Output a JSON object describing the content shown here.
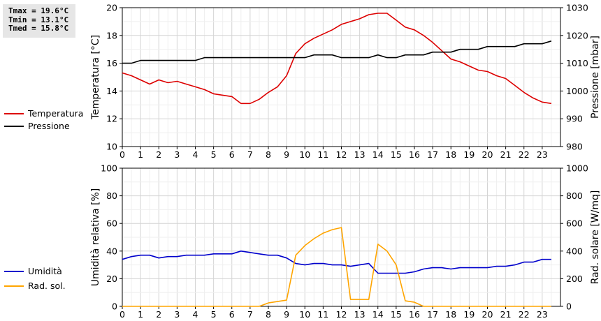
{
  "stats": {
    "tmax": "Tmax = 19.6°C",
    "tmin": "Tmin = 13.1°C",
    "tmed": "Tmed = 15.8°C"
  },
  "legend_top": [
    {
      "label": "Temperatura",
      "color": "#dd0000"
    },
    {
      "label": "Pressione",
      "color": "#000000"
    }
  ],
  "legend_bottom": [
    {
      "label": "Umidità",
      "color": "#0000cc"
    },
    {
      "label": "Rad. sol.",
      "color": "#ffa500"
    }
  ],
  "chart_data": [
    {
      "type": "line",
      "ylabel": "Temperatura [°C]",
      "y2label": "Pressione [mbar]",
      "xlim": [
        0,
        24
      ],
      "ylim": [
        10,
        20
      ],
      "y2lim": [
        980,
        1030
      ],
      "xticks": [
        "0",
        "1",
        "2",
        "3",
        "4",
        "5",
        "6",
        "7",
        "8",
        "9",
        "10",
        "11",
        "12",
        "13",
        "14",
        "15",
        "16",
        "17",
        "18",
        "19",
        "20",
        "21",
        "22",
        "23"
      ],
      "yticks": [
        "10",
        "12",
        "14",
        "16",
        "18",
        "20"
      ],
      "y2ticks": [
        "980",
        "990",
        "1000",
        "1010",
        "1020",
        "1030"
      ],
      "grid": true,
      "series": [
        {
          "name": "Temperatura",
          "axis": "left",
          "color": "#dd0000",
          "x": [
            0,
            0.5,
            1,
            1.5,
            2,
            2.5,
            3,
            3.5,
            4,
            4.5,
            5,
            5.5,
            6,
            6.5,
            7,
            7.5,
            8,
            8.5,
            9,
            9.5,
            10,
            10.5,
            11,
            11.5,
            12,
            12.5,
            13,
            13.5,
            14,
            14.5,
            15,
            15.5,
            16,
            16.5,
            17,
            17.5,
            18,
            18.5,
            19,
            19.5,
            20,
            20.5,
            21,
            21.5,
            22,
            22.5,
            23,
            23.5
          ],
          "values": [
            15.3,
            15.1,
            14.8,
            14.5,
            14.8,
            14.6,
            14.7,
            14.5,
            14.3,
            14.1,
            13.8,
            13.7,
            13.6,
            13.1,
            13.1,
            13.4,
            13.9,
            14.3,
            15.1,
            16.7,
            17.4,
            17.8,
            18.1,
            18.4,
            18.8,
            19.0,
            19.2,
            19.5,
            19.6,
            19.6,
            19.1,
            18.6,
            18.4,
            18.0,
            17.5,
            16.9,
            16.3,
            16.1,
            15.8,
            15.5,
            15.4,
            15.1,
            14.9,
            14.4,
            13.9,
            13.5,
            13.2,
            13.1
          ]
        },
        {
          "name": "Pressione",
          "axis": "right",
          "color": "#000000",
          "x": [
            0,
            0.5,
            1,
            1.5,
            2,
            2.5,
            3,
            3.5,
            4,
            4.5,
            5,
            5.5,
            6,
            6.5,
            7,
            7.5,
            8,
            8.5,
            9,
            9.5,
            10,
            10.5,
            11,
            11.5,
            12,
            12.5,
            13,
            13.5,
            14,
            14.5,
            15,
            15.5,
            16,
            16.5,
            17,
            17.5,
            18,
            18.5,
            19,
            19.5,
            20,
            20.5,
            21,
            21.5,
            22,
            22.5,
            23,
            23.5
          ],
          "values": [
            1010,
            1010,
            1011,
            1011,
            1011,
            1011,
            1011,
            1011,
            1011,
            1012,
            1012,
            1012,
            1012,
            1012,
            1012,
            1012,
            1012,
            1012,
            1012,
            1012,
            1012,
            1013,
            1013,
            1013,
            1012,
            1012,
            1012,
            1012,
            1013,
            1012,
            1012,
            1013,
            1013,
            1013,
            1014,
            1014,
            1014,
            1015,
            1015,
            1015,
            1016,
            1016,
            1016,
            1016,
            1017,
            1017,
            1017,
            1018
          ]
        }
      ]
    },
    {
      "type": "line",
      "ylabel": "Umidità relativa [%]",
      "y2label": "Rad. solare [W/mq]",
      "xlim": [
        0,
        24
      ],
      "ylim": [
        0,
        100
      ],
      "y2lim": [
        0,
        1000
      ],
      "xticks": [
        "0",
        "1",
        "2",
        "3",
        "4",
        "5",
        "6",
        "7",
        "8",
        "9",
        "10",
        "11",
        "12",
        "13",
        "14",
        "15",
        "16",
        "17",
        "18",
        "19",
        "20",
        "21",
        "22",
        "23"
      ],
      "yticks": [
        "0",
        "20",
        "40",
        "60",
        "80",
        "100"
      ],
      "y2ticks": [
        "0",
        "200",
        "400",
        "600",
        "800",
        "1000"
      ],
      "grid": true,
      "series": [
        {
          "name": "Umidità",
          "axis": "left",
          "color": "#0000cc",
          "x": [
            0,
            0.5,
            1,
            1.5,
            2,
            2.5,
            3,
            3.5,
            4,
            4.5,
            5,
            5.5,
            6,
            6.5,
            7,
            7.5,
            8,
            8.5,
            9,
            9.5,
            10,
            10.5,
            11,
            11.5,
            12,
            12.5,
            13,
            13.5,
            14,
            14.5,
            15,
            15.5,
            16,
            16.5,
            17,
            17.5,
            18,
            18.5,
            19,
            19.5,
            20,
            20.5,
            21,
            21.5,
            22,
            22.5,
            23,
            23.5
          ],
          "values": [
            34,
            36,
            37,
            37,
            35,
            36,
            36,
            37,
            37,
            37,
            38,
            38,
            38,
            40,
            39,
            38,
            37,
            37,
            35,
            31,
            30,
            31,
            31,
            30,
            30,
            29,
            30,
            31,
            24,
            24,
            24,
            24,
            25,
            27,
            28,
            28,
            27,
            28,
            28,
            28,
            28,
            29,
            29,
            30,
            32,
            32,
            34,
            34
          ]
        },
        {
          "name": "Rad. sol.",
          "axis": "right",
          "color": "#ffa500",
          "x": [
            0,
            1,
            2,
            3,
            4,
            5,
            6,
            7,
            7.5,
            8,
            8.5,
            9,
            9.5,
            10,
            10.5,
            11,
            11.5,
            12,
            12.5,
            13,
            13.5,
            14,
            14.5,
            15,
            15.5,
            16,
            16.5,
            17,
            18,
            19,
            20,
            21,
            22,
            23,
            23.5
          ],
          "values": [
            0,
            0,
            0,
            0,
            0,
            0,
            0,
            0,
            0,
            25,
            35,
            45,
            370,
            440,
            490,
            530,
            555,
            570,
            50,
            50,
            50,
            450,
            400,
            300,
            40,
            30,
            0,
            0,
            0,
            0,
            0,
            0,
            0,
            0,
            0
          ]
        }
      ]
    }
  ]
}
